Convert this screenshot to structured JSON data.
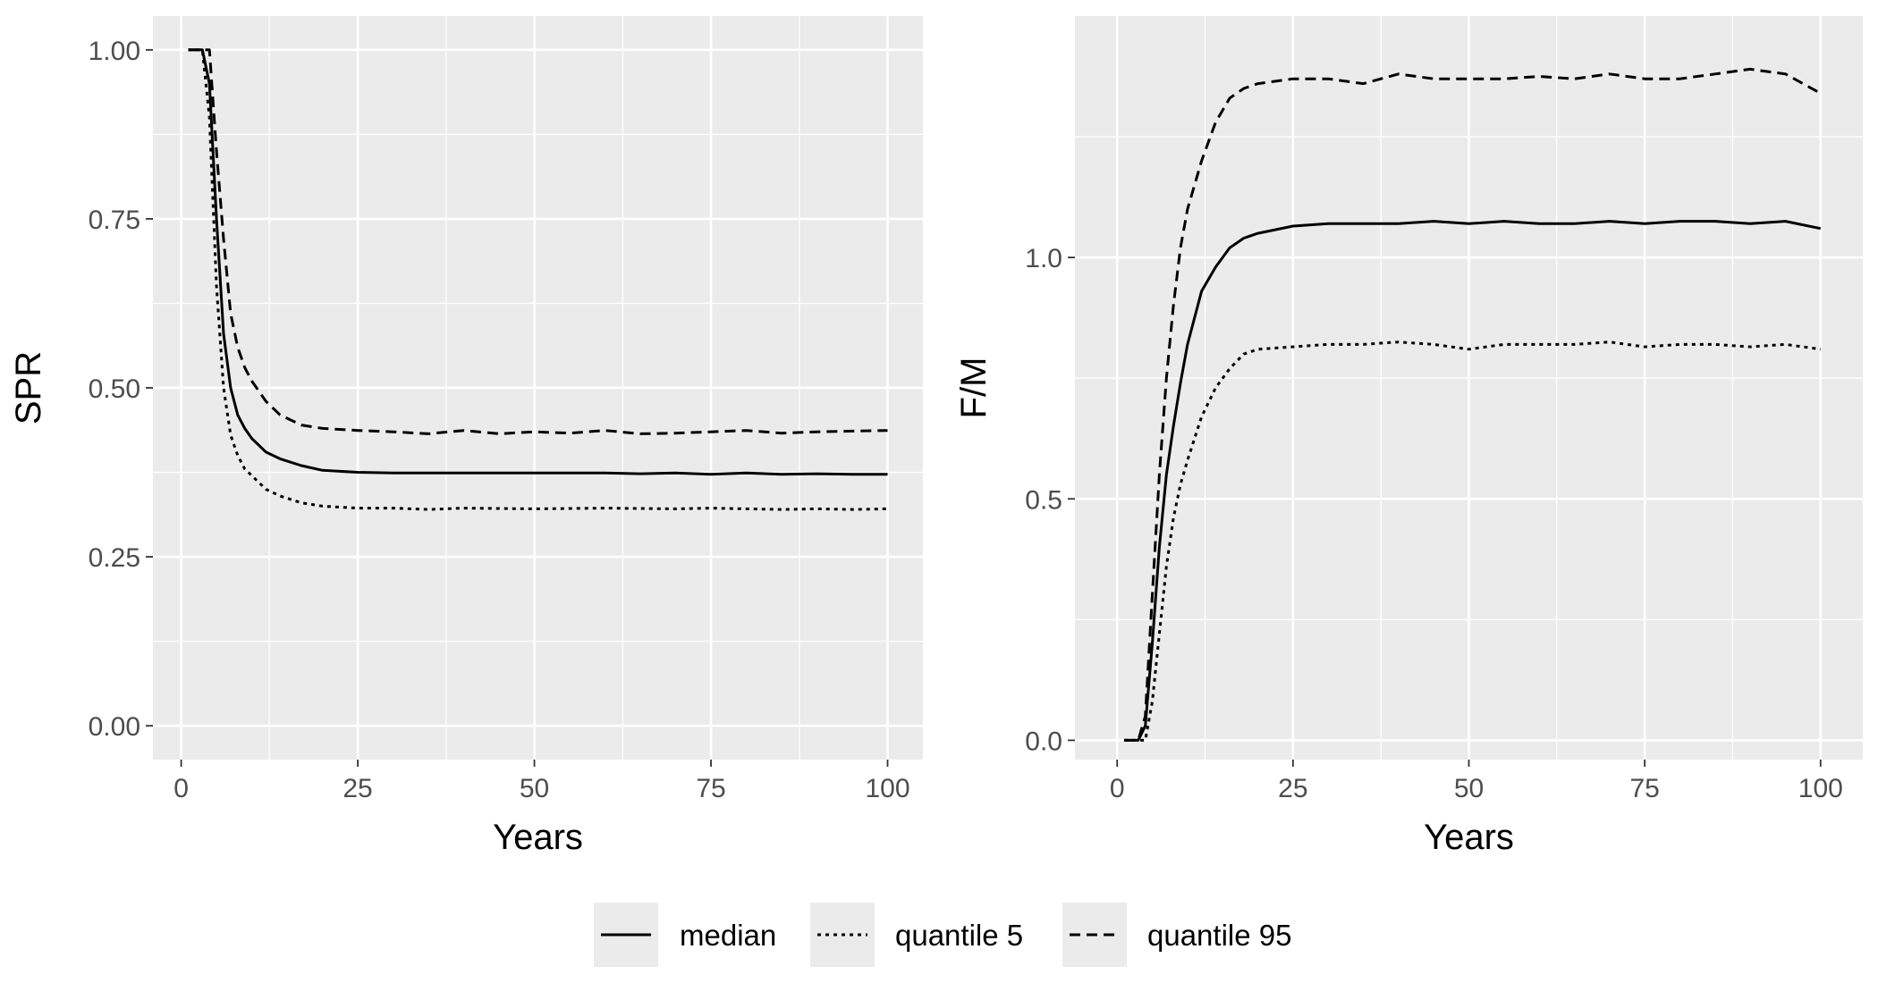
{
  "chart_data": [
    {
      "type": "line",
      "title": "",
      "xlabel": "Years",
      "ylabel": "SPR",
      "xlim": [
        -4,
        105
      ],
      "ylim": [
        -0.05,
        1.05
      ],
      "xticks": [
        0,
        25,
        50,
        75,
        100
      ],
      "xtick_labels": [
        "0",
        "25",
        "50",
        "75",
        "100"
      ],
      "yticks": [
        0,
        0.25,
        0.5,
        0.75,
        1.0
      ],
      "ytick_labels": [
        "0.00",
        "0.25",
        "0.50",
        "0.75",
        "1.00"
      ],
      "series": [
        {
          "name": "median",
          "dash": "solid",
          "x": [
            1,
            3,
            4,
            5,
            6,
            7,
            8,
            9,
            10,
            12,
            14,
            17,
            20,
            25,
            30,
            40,
            50,
            60,
            65,
            70,
            75,
            80,
            85,
            90,
            95,
            100
          ],
          "y": [
            1.0,
            1.0,
            0.95,
            0.75,
            0.58,
            0.5,
            0.46,
            0.44,
            0.425,
            0.405,
            0.395,
            0.385,
            0.378,
            0.375,
            0.374,
            0.374,
            0.374,
            0.374,
            0.373,
            0.374,
            0.372,
            0.374,
            0.372,
            0.373,
            0.372,
            0.372
          ]
        },
        {
          "name": "quantile 5",
          "dash": "dotted",
          "x": [
            1,
            3,
            4,
            5,
            6,
            7,
            8,
            9,
            10,
            12,
            14,
            17,
            20,
            25,
            30,
            35,
            40,
            50,
            60,
            70,
            75,
            80,
            85,
            90,
            95,
            100
          ],
          "y": [
            1.0,
            1.0,
            0.9,
            0.65,
            0.5,
            0.43,
            0.4,
            0.38,
            0.37,
            0.35,
            0.34,
            0.33,
            0.325,
            0.322,
            0.322,
            0.32,
            0.322,
            0.321,
            0.322,
            0.321,
            0.322,
            0.321,
            0.32,
            0.321,
            0.32,
            0.321
          ]
        },
        {
          "name": "quantile 95",
          "dash": "dashed",
          "x": [
            1,
            3,
            4,
            5,
            6,
            7,
            8,
            9,
            10,
            12,
            14,
            17,
            20,
            25,
            30,
            35,
            40,
            45,
            50,
            55,
            60,
            65,
            70,
            75,
            80,
            85,
            90,
            95,
            100
          ],
          "y": [
            1.0,
            1.0,
            1.0,
            0.85,
            0.72,
            0.61,
            0.56,
            0.53,
            0.51,
            0.48,
            0.46,
            0.445,
            0.44,
            0.437,
            0.435,
            0.432,
            0.437,
            0.432,
            0.435,
            0.433,
            0.437,
            0.432,
            0.433,
            0.435,
            0.437,
            0.433,
            0.435,
            0.436,
            0.437
          ]
        }
      ]
    },
    {
      "type": "line",
      "title": "",
      "xlabel": "Years",
      "ylabel": "F/M",
      "xlim": [
        -6,
        106
      ],
      "ylim": [
        -0.04,
        1.5
      ],
      "xticks": [
        0,
        25,
        50,
        75,
        100
      ],
      "xtick_labels": [
        "0",
        "25",
        "50",
        "75",
        "100"
      ],
      "yticks": [
        0,
        0.5,
        1.0
      ],
      "ytick_labels": [
        "0.0",
        "0.5",
        "1.0"
      ],
      "series": [
        {
          "name": "median",
          "dash": "solid",
          "x": [
            1,
            3,
            4,
            5,
            6,
            7,
            8,
            9,
            10,
            12,
            14,
            16,
            18,
            20,
            25,
            30,
            35,
            40,
            45,
            50,
            55,
            60,
            65,
            70,
            75,
            80,
            85,
            90,
            95,
            100
          ],
          "y": [
            0,
            0,
            0.03,
            0.2,
            0.4,
            0.55,
            0.65,
            0.74,
            0.82,
            0.93,
            0.98,
            1.02,
            1.04,
            1.05,
            1.065,
            1.07,
            1.07,
            1.07,
            1.075,
            1.07,
            1.075,
            1.07,
            1.07,
            1.075,
            1.07,
            1.075,
            1.075,
            1.07,
            1.075,
            1.06
          ]
        },
        {
          "name": "quantile 5",
          "dash": "dotted",
          "x": [
            1,
            3,
            4,
            5,
            6,
            7,
            8,
            9,
            10,
            12,
            14,
            16,
            18,
            20,
            25,
            30,
            35,
            40,
            45,
            50,
            55,
            60,
            65,
            70,
            75,
            80,
            85,
            90,
            95,
            100
          ],
          "y": [
            0,
            0,
            0.0,
            0.08,
            0.22,
            0.36,
            0.46,
            0.53,
            0.58,
            0.67,
            0.73,
            0.77,
            0.8,
            0.81,
            0.815,
            0.82,
            0.82,
            0.825,
            0.82,
            0.81,
            0.82,
            0.82,
            0.82,
            0.825,
            0.815,
            0.82,
            0.82,
            0.815,
            0.82,
            0.81
          ]
        },
        {
          "name": "quantile 95",
          "dash": "dashed",
          "x": [
            1,
            3,
            4,
            5,
            6,
            7,
            8,
            9,
            10,
            12,
            14,
            16,
            18,
            20,
            25,
            30,
            35,
            40,
            45,
            50,
            55,
            60,
            65,
            70,
            75,
            80,
            85,
            90,
            95,
            100
          ],
          "y": [
            0,
            0,
            0.05,
            0.3,
            0.55,
            0.75,
            0.9,
            1.02,
            1.1,
            1.2,
            1.28,
            1.33,
            1.35,
            1.36,
            1.37,
            1.37,
            1.36,
            1.38,
            1.37,
            1.37,
            1.37,
            1.375,
            1.37,
            1.38,
            1.37,
            1.37,
            1.38,
            1.39,
            1.38,
            1.34
          ]
        }
      ]
    }
  ],
  "legend": {
    "position": "bottom",
    "items": [
      {
        "label": "median",
        "dash": "solid"
      },
      {
        "label": "quantile 5",
        "dash": "dotted"
      },
      {
        "label": "quantile 95",
        "dash": "dashed"
      }
    ]
  }
}
